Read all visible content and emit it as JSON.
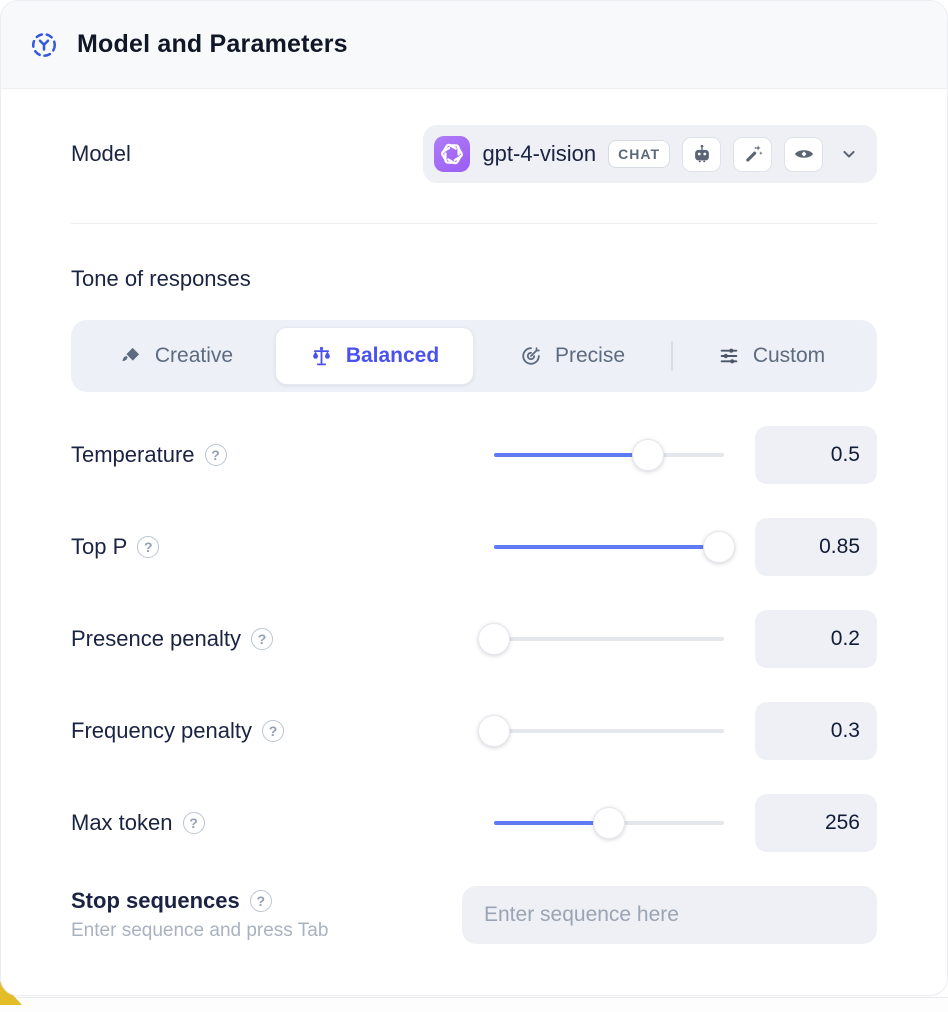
{
  "header": {
    "title": "Model and Parameters",
    "icon": "model-hub-icon"
  },
  "model_row": {
    "label": "Model",
    "selected_model": "gpt-4-vision",
    "type_badge": "CHAT",
    "capability_icons": [
      "robot-icon",
      "magic-wand-icon",
      "vision-eye-icon"
    ],
    "provider_icon": "openai-logo"
  },
  "tone": {
    "heading": "Tone of responses",
    "tabs": [
      {
        "label": "Creative",
        "icon": "paintbrush-icon",
        "active": false
      },
      {
        "label": "Balanced",
        "icon": "balance-scale-icon",
        "active": true
      },
      {
        "label": "Precise",
        "icon": "target-icon",
        "active": false
      },
      {
        "label": "Custom",
        "icon": "sliders-icon",
        "active": false
      }
    ]
  },
  "parameters": [
    {
      "label": "Temperature",
      "value": "0.5",
      "fill": 67
    },
    {
      "label": "Top P",
      "value": "0.85",
      "fill": 98
    },
    {
      "label": "Presence penalty",
      "value": "0.2",
      "fill": 0
    },
    {
      "label": "Frequency penalty",
      "value": "0.3",
      "fill": 0
    },
    {
      "label": "Max token",
      "value": "256",
      "fill": 50
    }
  ],
  "stop_sequences": {
    "label": "Stop sequences",
    "hint": "Enter sequence and press Tab",
    "placeholder": "Enter sequence here"
  },
  "colors": {
    "accent": "#4a51ee",
    "slider": "#607bf4",
    "provider": "#9a5df4",
    "header_bg": "#f8f9fb"
  }
}
